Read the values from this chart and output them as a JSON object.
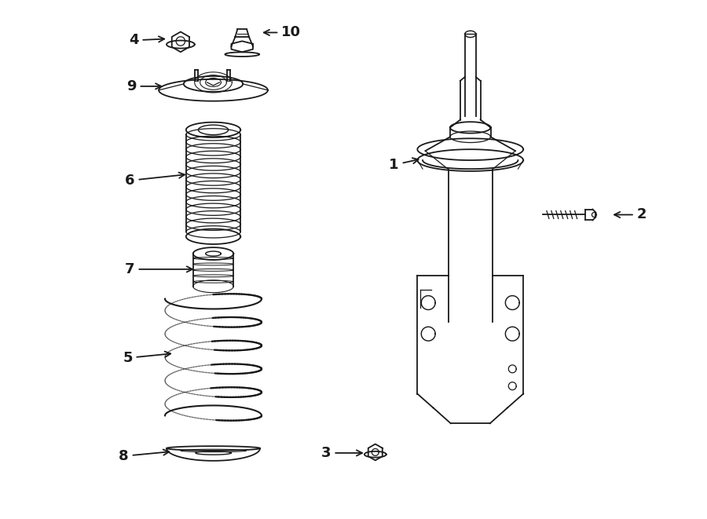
{
  "bg_color": "#ffffff",
  "line_color": "#1a1a1a",
  "fig_width": 9.0,
  "fig_height": 6.61,
  "dpi": 100,
  "label_fontsize": 13,
  "lw": 1.3
}
